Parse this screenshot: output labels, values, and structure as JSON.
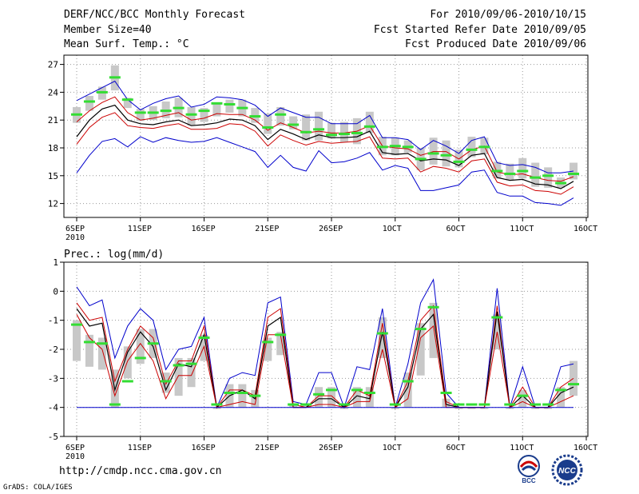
{
  "header": {
    "title": "DERF/NCC/BCC Monthly Forecast",
    "member_size": "Member Size=40",
    "variable": "Mean Surf. Temp.: °C",
    "forecast_range": "For 2010/09/06-2010/10/15",
    "started_refer": "Fcst Started Refer Date 2010/09/05",
    "produced": "Fcst Produced Date 2010/09/06"
  },
  "footer": {
    "url": "http://cmdp.ncc.cma.gov.cn",
    "credit": "GrADS: COLA/IGES",
    "logo_left": "BCC",
    "logo_right": "NCC"
  },
  "colors": {
    "ensemble_max": "#0000cc",
    "ensemble_min": "#0000cc",
    "upper_spread": "#cc0000",
    "lower_spread": "#cc0000",
    "ensemble_mean": "#000000",
    "box": "#c8c8c8",
    "median": "#33dd33"
  },
  "chart_data": [
    {
      "type": "box-and-line",
      "title": "",
      "ylabel": "Mean Surf. Temp.: °C",
      "ylim": [
        10.5,
        28
      ],
      "yticks": [
        12,
        15,
        18,
        21,
        24,
        27
      ],
      "grid": true,
      "x_day_start": 0,
      "x_day_end": 40,
      "x_ticks": [
        {
          "day": 0,
          "label": "6SEP",
          "label2": "2010"
        },
        {
          "day": 5,
          "label": "11SEP"
        },
        {
          "day": 10,
          "label": "16SEP"
        },
        {
          "day": 15,
          "label": "21SEP"
        },
        {
          "day": 20,
          "label": "26SEP"
        },
        {
          "day": 25,
          "label": "1OCT"
        },
        {
          "day": 30,
          "label": "6OCT"
        },
        {
          "day": 35,
          "label": "11OCT"
        },
        {
          "day": 40,
          "label": "16OCT"
        }
      ],
      "days": [
        0,
        1,
        2,
        3,
        4,
        5,
        6,
        7,
        8,
        9,
        10,
        11,
        12,
        13,
        14,
        15,
        16,
        17,
        18,
        19,
        20,
        21,
        22,
        23,
        24,
        25,
        26,
        27,
        28,
        29,
        30,
        31,
        32,
        33,
        34,
        35,
        36,
        37,
        38,
        39
      ],
      "series": [
        {
          "name": "max",
          "values": [
            23.1,
            23.8,
            24.5,
            25.2,
            23.2,
            22.1,
            22.8,
            23.3,
            23.6,
            22.4,
            22.7,
            23.5,
            23.4,
            23.2,
            22.6,
            21.4,
            22.3,
            21.8,
            21.3,
            21.3,
            20.6,
            20.6,
            20.6,
            21.5,
            19.1,
            19.1,
            18.9,
            17.8,
            18.8,
            18.2,
            17.4,
            18.8,
            19.2,
            16.4,
            16.1,
            16.2,
            15.9,
            15.3,
            15.3,
            15.5
          ]
        },
        {
          "name": "upper",
          "values": [
            20.8,
            22.0,
            22.9,
            23.5,
            21.8,
            21.0,
            21.2,
            21.5,
            21.8,
            21.0,
            21.2,
            21.7,
            21.6,
            21.6,
            21.0,
            19.9,
            20.7,
            20.2,
            19.6,
            19.8,
            19.6,
            19.6,
            19.8,
            20.4,
            18.2,
            18.0,
            17.9,
            17.2,
            17.6,
            17.6,
            16.8,
            17.8,
            18.2,
            15.4,
            15.1,
            15.2,
            14.8,
            14.5,
            14.4,
            14.9
          ]
        },
        {
          "name": "mean",
          "values": [
            19.2,
            21.0,
            22.2,
            22.6,
            21.0,
            20.6,
            20.5,
            20.8,
            21.0,
            20.4,
            20.5,
            20.7,
            21.1,
            21.0,
            20.4,
            18.9,
            20.0,
            19.5,
            18.9,
            19.4,
            19.1,
            19.1,
            19.2,
            19.8,
            17.5,
            17.3,
            17.4,
            16.6,
            16.8,
            16.7,
            16.1,
            17.2,
            17.4,
            14.8,
            14.5,
            14.6,
            14.1,
            14.0,
            13.6,
            14.4
          ]
        },
        {
          "name": "lower",
          "values": [
            18.4,
            20.2,
            21.3,
            21.8,
            20.4,
            20.2,
            20.1,
            20.4,
            20.6,
            20.0,
            20.0,
            20.1,
            20.6,
            20.5,
            19.8,
            18.2,
            19.4,
            18.8,
            18.3,
            18.7,
            18.5,
            18.6,
            18.7,
            19.2,
            16.9,
            16.8,
            16.9,
            15.4,
            16.0,
            15.8,
            15.4,
            16.6,
            16.8,
            14.3,
            13.9,
            14.0,
            13.4,
            13.3,
            13.0,
            13.8
          ]
        },
        {
          "name": "min",
          "values": [
            15.3,
            17.2,
            18.7,
            19.0,
            18.1,
            19.2,
            18.6,
            19.1,
            18.8,
            18.6,
            18.7,
            19.1,
            18.6,
            18.1,
            17.6,
            15.9,
            17.2,
            15.9,
            15.5,
            17.7,
            16.4,
            16.5,
            16.9,
            17.5,
            15.6,
            16.1,
            15.8,
            13.4,
            13.4,
            13.7,
            14.0,
            15.4,
            15.6,
            13.2,
            12.8,
            12.8,
            12.1,
            12.0,
            11.8,
            12.6
          ]
        }
      ],
      "boxes": {
        "low": [
          20.7,
          22.0,
          23.2,
          24.2,
          22.3,
          20.9,
          21.0,
          21.2,
          21.3,
          20.4,
          20.8,
          21.4,
          21.8,
          21.4,
          20.7,
          19.5,
          20.4,
          20.0,
          18.8,
          18.8,
          19.0,
          18.6,
          18.4,
          19.6,
          17.2,
          17.2,
          17.5,
          15.6,
          16.2,
          16.0,
          15.9,
          17.0,
          17.3,
          14.7,
          14.5,
          14.7,
          13.8,
          13.7,
          13.7,
          14.6
        ],
        "high": [
          22.4,
          23.6,
          24.6,
          26.9,
          23.4,
          22.2,
          22.5,
          23.0,
          23.4,
          22.4,
          22.3,
          22.8,
          23.2,
          23.2,
          22.3,
          21.7,
          22.4,
          21.4,
          21.6,
          21.9,
          20.7,
          20.8,
          21.2,
          21.9,
          19.2,
          19.1,
          18.8,
          18.0,
          19.1,
          18.8,
          17.8,
          19.2,
          19.1,
          16.5,
          16.3,
          16.9,
          16.4,
          15.9,
          14.8,
          16.4
        ],
        "median": [
          21.6,
          23.0,
          24.0,
          25.6,
          23.2,
          21.8,
          21.8,
          22.0,
          22.3,
          21.6,
          22.0,
          22.8,
          22.7,
          22.3,
          21.4,
          20.2,
          21.6,
          20.5,
          19.7,
          20.0,
          19.4,
          19.5,
          19.6,
          20.3,
          18.1,
          18.2,
          18.1,
          16.8,
          17.4,
          17.2,
          16.5,
          17.8,
          18.1,
          15.5,
          15.2,
          15.5,
          14.8,
          15.0,
          14.2,
          15.2
        ]
      }
    },
    {
      "type": "box-and-line",
      "title": "Prec.: log(mm/d)",
      "ylabel": "Prec.: log(mm/d)",
      "ylim": [
        -5,
        1
      ],
      "yticks": [
        -5,
        -4,
        -3,
        -2,
        -1,
        0,
        1
      ],
      "grid": true,
      "x_day_start": 0,
      "x_day_end": 40,
      "x_ticks": [
        {
          "day": 0,
          "label": "6SEP",
          "label2": "2010"
        },
        {
          "day": 5,
          "label": "11SEP"
        },
        {
          "day": 10,
          "label": "16SEP"
        },
        {
          "day": 15,
          "label": "21SEP"
        },
        {
          "day": 20,
          "label": "26SEP"
        },
        {
          "day": 25,
          "label": "1OCT"
        },
        {
          "day": 30,
          "label": "6OCT"
        },
        {
          "day": 35,
          "label": "11OCT"
        },
        {
          "day": 40,
          "label": "16OCT"
        }
      ],
      "days": [
        0,
        1,
        2,
        3,
        4,
        5,
        6,
        7,
        8,
        9,
        10,
        11,
        12,
        13,
        14,
        15,
        16,
        17,
        18,
        19,
        20,
        21,
        22,
        23,
        24,
        25,
        26,
        27,
        28,
        29,
        30,
        31,
        32,
        33,
        34,
        35,
        36,
        37,
        38,
        39
      ],
      "series": [
        {
          "name": "max",
          "values": [
            0.15,
            -0.5,
            -0.3,
            -2.3,
            -1.2,
            -0.6,
            -1.0,
            -2.7,
            -2.0,
            -1.9,
            -0.9,
            -4.0,
            -3.0,
            -2.8,
            -2.9,
            -0.4,
            -0.2,
            -3.8,
            -3.9,
            -2.8,
            -2.8,
            -4.0,
            -2.6,
            -2.7,
            -0.6,
            -4.0,
            -2.5,
            -0.4,
            0.4,
            -3.5,
            -4.0,
            -4.0,
            -4.0,
            0.1,
            -4.0,
            -2.6,
            -4.0,
            -4.0,
            -2.6,
            -2.5
          ]
        },
        {
          "name": "upper",
          "values": [
            -0.4,
            -1.0,
            -0.9,
            -3.1,
            -2.0,
            -1.2,
            -1.6,
            -3.2,
            -2.4,
            -2.4,
            -1.2,
            -4.0,
            -3.4,
            -3.4,
            -3.6,
            -0.9,
            -0.6,
            -3.9,
            -4.0,
            -3.6,
            -3.6,
            -4.0,
            -3.4,
            -3.6,
            -1.1,
            -4.0,
            -3.1,
            -1.0,
            -0.5,
            -3.8,
            -4.0,
            -4.0,
            -4.0,
            -0.5,
            -4.0,
            -3.3,
            -4.0,
            -4.0,
            -3.3,
            -3.0
          ]
        },
        {
          "name": "mean",
          "values": [
            -0.6,
            -1.2,
            -1.1,
            -3.4,
            -2.1,
            -1.4,
            -1.9,
            -3.4,
            -2.5,
            -2.6,
            -1.5,
            -4.0,
            -3.6,
            -3.4,
            -3.7,
            -1.2,
            -0.9,
            -4.0,
            -4.0,
            -3.7,
            -3.7,
            -4.0,
            -3.6,
            -3.7,
            -1.4,
            -4.0,
            -3.3,
            -1.3,
            -0.8,
            -3.9,
            -4.0,
            -4.0,
            -4.0,
            -0.7,
            -4.0,
            -3.6,
            -4.0,
            -4.0,
            -3.5,
            -3.3
          ]
        },
        {
          "name": "lower",
          "values": [
            -0.8,
            -1.6,
            -2.0,
            -3.6,
            -2.4,
            -1.8,
            -2.4,
            -3.7,
            -2.9,
            -2.9,
            -1.9,
            -4.0,
            -3.9,
            -3.8,
            -3.9,
            -1.5,
            -1.5,
            -4.0,
            -4.0,
            -3.9,
            -3.9,
            -4.0,
            -3.8,
            -3.8,
            -2.0,
            -4.0,
            -3.7,
            -1.6,
            -1.2,
            -4.0,
            -4.0,
            -4.0,
            -4.0,
            -1.4,
            -4.0,
            -3.8,
            -4.0,
            -4.0,
            -3.8,
            -3.6
          ]
        },
        {
          "name": "min",
          "values": [
            -4.0,
            -4.0,
            -4.0,
            -4.0,
            -4.0,
            -4.0,
            -4.0,
            -4.0,
            -4.0,
            -4.0,
            -4.0,
            -4.0,
            -4.0,
            -4.0,
            -4.0,
            -4.0,
            -4.0,
            -4.0,
            -4.0,
            -4.0,
            -4.0,
            -4.0,
            -4.0,
            -4.0,
            -4.0,
            -4.0,
            -4.0,
            -4.0,
            -4.0,
            -4.0,
            -4.0,
            -4.0,
            -4.0,
            -4.0,
            -4.0,
            -4.0,
            -4.0,
            -4.0,
            -4.0,
            -4.0
          ]
        }
      ],
      "boxes": {
        "low": [
          -2.4,
          -2.6,
          -2.7,
          -4.0,
          -3.0,
          -2.5,
          -2.3,
          -3.5,
          -3.6,
          -3.3,
          -2.4,
          -4.0,
          -4.0,
          -4.0,
          -4.0,
          -2.4,
          -2.2,
          -4.0,
          -4.0,
          -4.0,
          -4.0,
          -4.0,
          -4.0,
          -4.0,
          -2.3,
          -4.0,
          -4.0,
          -2.9,
          -2.3,
          -4.0,
          -4.0,
          -4.0,
          -4.0,
          -2.0,
          -4.0,
          -4.0,
          -4.0,
          -4.0,
          -4.0,
          -3.6
        ],
        "high": [
          -1.0,
          -1.5,
          -1.6,
          -2.7,
          -1.9,
          -1.3,
          -1.3,
          -2.8,
          -2.3,
          -2.3,
          -1.5,
          -4.0,
          -3.2,
          -3.2,
          -3.4,
          -1.6,
          -1.4,
          -3.9,
          -3.9,
          -3.3,
          -3.3,
          -4.0,
          -3.3,
          -3.3,
          -0.9,
          -4.0,
          -2.8,
          -1.1,
          -0.4,
          -3.7,
          -4.0,
          -4.0,
          -4.0,
          -0.8,
          -4.0,
          -3.4,
          -4.0,
          -4.0,
          -3.3,
          -2.4
        ],
        "median": [
          -1.15,
          -1.75,
          -1.8,
          -3.9,
          -3.1,
          -2.3,
          -1.8,
          -3.1,
          -2.55,
          -2.5,
          -1.6,
          -3.9,
          -3.5,
          -3.5,
          -3.6,
          -1.75,
          -1.5,
          -3.9,
          -3.9,
          -3.55,
          -3.4,
          -3.9,
          -3.4,
          -3.5,
          -1.45,
          -3.9,
          -3.1,
          -1.3,
          -0.55,
          -3.5,
          -3.9,
          -3.9,
          -3.9,
          -0.9,
          -3.9,
          -3.6,
          -3.9,
          -3.9,
          -3.4,
          -3.2
        ]
      }
    }
  ]
}
